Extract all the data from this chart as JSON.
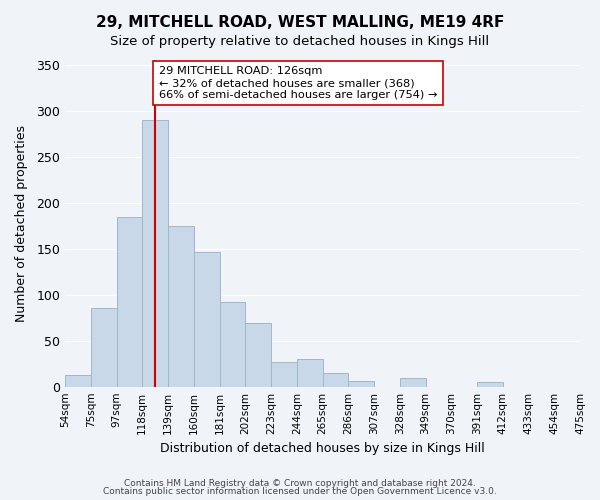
{
  "title1": "29, MITCHELL ROAD, WEST MALLING, ME19 4RF",
  "title2": "Size of property relative to detached houses in Kings Hill",
  "xlabel": "Distribution of detached houses by size in Kings Hill",
  "ylabel": "Number of detached properties",
  "bar_color": "#c8d8e8",
  "bar_edge_color": "#a0b8cc",
  "bin_labels": [
    "54sqm",
    "75sqm",
    "97sqm",
    "118sqm",
    "139sqm",
    "160sqm",
    "181sqm",
    "202sqm",
    "223sqm",
    "244sqm",
    "265sqm",
    "286sqm",
    "307sqm",
    "328sqm",
    "349sqm",
    "370sqm",
    "391sqm",
    "412sqm",
    "433sqm",
    "454sqm",
    "475sqm"
  ],
  "values": [
    13,
    85,
    184,
    290,
    175,
    146,
    92,
    69,
    27,
    30,
    15,
    6,
    0,
    9,
    0,
    0,
    5,
    0,
    0,
    0
  ],
  "vline_x": 3.5,
  "vline_color": "#cc0000",
  "annotation_text": "29 MITCHELL ROAD: 126sqm\n← 32% of detached houses are smaller (368)\n66% of semi-detached houses are larger (754) →",
  "annotation_box_color": "#ffffff",
  "annotation_box_edge": "#cc0000",
  "ylim": [
    0,
    355
  ],
  "yticks": [
    0,
    50,
    100,
    150,
    200,
    250,
    300,
    350
  ],
  "footer1": "Contains HM Land Registry data © Crown copyright and database right 2024.",
  "footer2": "Contains public sector information licensed under the Open Government Licence v3.0.",
  "background_color": "#f0f4f8"
}
